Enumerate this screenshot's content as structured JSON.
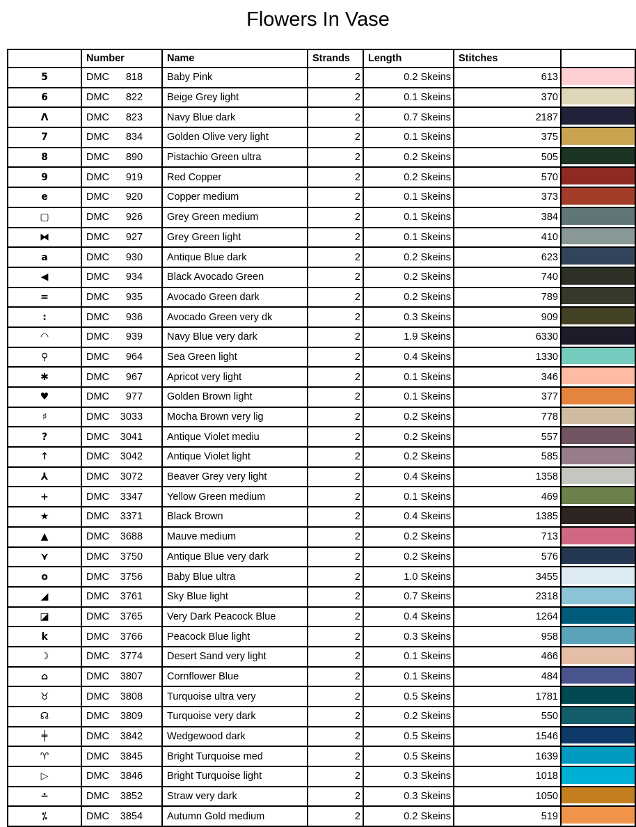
{
  "title": "Flowers In Vase",
  "headers": {
    "symbol": "",
    "number": "Number",
    "name": "Name",
    "strands": "Strands",
    "length": "Length",
    "stitches": "Stitches",
    "color": ""
  },
  "rows": [
    {
      "symbol": "5",
      "brand": "DMC",
      "number": "818",
      "name": "Baby Pink",
      "strands": "2",
      "length": "0.2 Skeins",
      "stitches": "613",
      "color": "#FFD0D3"
    },
    {
      "symbol": "6",
      "brand": "DMC",
      "number": "822",
      "name": "Beige Grey light",
      "strands": "2",
      "length": "0.1 Skeins",
      "stitches": "370",
      "color": "#E0D6BA"
    },
    {
      "symbol": "Λ",
      "brand": "DMC",
      "number": "823",
      "name": "Navy Blue dark",
      "strands": "2",
      "length": "0.7 Skeins",
      "stitches": "2187",
      "color": "#21223A"
    },
    {
      "symbol": "7",
      "brand": "DMC",
      "number": "834",
      "name": "Golden Olive very light",
      "strands": "2",
      "length": "0.1 Skeins",
      "stitches": "375",
      "color": "#C8A350"
    },
    {
      "symbol": "8",
      "brand": "DMC",
      "number": "890",
      "name": "Pistachio Green ultra",
      "strands": "2",
      "length": "0.2 Skeins",
      "stitches": "505",
      "color": "#1C3423"
    },
    {
      "symbol": "9",
      "brand": "DMC",
      "number": "919",
      "name": "Red Copper",
      "strands": "2",
      "length": "0.2 Skeins",
      "stitches": "570",
      "color": "#8E2A22"
    },
    {
      "symbol": "e",
      "brand": "DMC",
      "number": "920",
      "name": "Copper medium",
      "strands": "2",
      "length": "0.1 Skeins",
      "stitches": "373",
      "color": "#A33C29"
    },
    {
      "symbol": "▢",
      "brand": "DMC",
      "number": "926",
      "name": "Grey Green medium",
      "strands": "2",
      "length": "0.1 Skeins",
      "stitches": "384",
      "color": "#607575"
    },
    {
      "symbol": "⧓",
      "brand": "DMC",
      "number": "927",
      "name": "Grey Green light",
      "strands": "2",
      "length": "0.1 Skeins",
      "stitches": "410",
      "color": "#889896"
    },
    {
      "symbol": "a",
      "brand": "DMC",
      "number": "930",
      "name": "Antique Blue dark",
      "strands": "2",
      "length": "0.2 Skeins",
      "stitches": "623",
      "color": "#31445A"
    },
    {
      "symbol": "◀",
      "brand": "DMC",
      "number": "934",
      "name": "Black Avocado Green",
      "strands": "2",
      "length": "0.2 Skeins",
      "stitches": "740",
      "color": "#2D3125"
    },
    {
      "symbol": "=",
      "brand": "DMC",
      "number": "935",
      "name": "Avocado Green dark",
      "strands": "2",
      "length": "0.2 Skeins",
      "stitches": "789",
      "color": "#353A2B"
    },
    {
      "symbol": ":",
      "brand": "DMC",
      "number": "936",
      "name": "Avocado Green very dk",
      "strands": "2",
      "length": "0.3 Skeins",
      "stitches": "909",
      "color": "#434224"
    },
    {
      "symbol": "◠",
      "brand": "DMC",
      "number": "939",
      "name": "Navy Blue very dark",
      "strands": "2",
      "length": "1.9 Skeins",
      "stitches": "6330",
      "color": "#1C1B2A"
    },
    {
      "symbol": "⚲",
      "brand": "DMC",
      "number": "964",
      "name": "Sea Green light",
      "strands": "2",
      "length": "0.4 Skeins",
      "stitches": "1330",
      "color": "#75CBBE"
    },
    {
      "symbol": "✱",
      "brand": "DMC",
      "number": "967",
      "name": "Apricot very light",
      "strands": "2",
      "length": "0.1 Skeins",
      "stitches": "346",
      "color": "#FFBBA4"
    },
    {
      "symbol": "♥",
      "brand": "DMC",
      "number": "977",
      "name": "Golden Brown light",
      "strands": "2",
      "length": "0.1 Skeins",
      "stitches": "377",
      "color": "#E5843D"
    },
    {
      "symbol": "♯",
      "brand": "DMC",
      "number": "3033",
      "name": "Mocha Brown very lig",
      "strands": "2",
      "length": "0.2 Skeins",
      "stitches": "778",
      "color": "#D0BBA3"
    },
    {
      "symbol": "?",
      "brand": "DMC",
      "number": "3041",
      "name": "Antique Violet mediu",
      "strands": "2",
      "length": "0.2 Skeins",
      "stitches": "557",
      "color": "#705462"
    },
    {
      "symbol": "↑",
      "brand": "DMC",
      "number": "3042",
      "name": "Antique Violet light",
      "strands": "2",
      "length": "0.2 Skeins",
      "stitches": "585",
      "color": "#977C8C"
    },
    {
      "symbol": "⅄",
      "brand": "DMC",
      "number": "3072",
      "name": "Beaver Grey very light",
      "strands": "2",
      "length": "0.4 Skeins",
      "stitches": "1358",
      "color": "#C4C6C0"
    },
    {
      "symbol": "+",
      "brand": "DMC",
      "number": "3347",
      "name": "Yellow Green medium",
      "strands": "2",
      "length": "0.1 Skeins",
      "stitches": "469",
      "color": "#6B804A"
    },
    {
      "symbol": "★",
      "brand": "DMC",
      "number": "3371",
      "name": "Black Brown",
      "strands": "2",
      "length": "0.4 Skeins",
      "stitches": "1385",
      "color": "#2E2421"
    },
    {
      "symbol": "▲",
      "brand": "DMC",
      "number": "3688",
      "name": "Mauve medium",
      "strands": "2",
      "length": "0.2 Skeins",
      "stitches": "713",
      "color": "#D06884"
    },
    {
      "symbol": "⋎",
      "brand": "DMC",
      "number": "3750",
      "name": "Antique Blue very dark",
      "strands": "2",
      "length": "0.2 Skeins",
      "stitches": "576",
      "color": "#243750"
    },
    {
      "symbol": "o",
      "brand": "DMC",
      "number": "3756",
      "name": "Baby Blue ultra",
      "strands": "2",
      "length": "1.0 Skeins",
      "stitches": "3455",
      "color": "#DDEBF2"
    },
    {
      "symbol": "◢",
      "brand": "DMC",
      "number": "3761",
      "name": "Sky Blue light",
      "strands": "2",
      "length": "0.7 Skeins",
      "stitches": "2318",
      "color": "#8CC3D7"
    },
    {
      "symbol": "◪",
      "brand": "DMC",
      "number": "3765",
      "name": "Very Dark Peacock Blue",
      "strands": "2",
      "length": "0.4 Skeins",
      "stitches": "1264",
      "color": "#005A7A"
    },
    {
      "symbol": "k",
      "brand": "DMC",
      "number": "3766",
      "name": "Peacock Blue light",
      "strands": "2",
      "length": "0.3 Skeins",
      "stitches": "958",
      "color": "#5AA3BA"
    },
    {
      "symbol": "☽",
      "brand": "DMC",
      "number": "3774",
      "name": "Desert Sand very light",
      "strands": "2",
      "length": "0.1 Skeins",
      "stitches": "466",
      "color": "#E6BDA7"
    },
    {
      "symbol": "⌂",
      "brand": "DMC",
      "number": "3807",
      "name": "Cornflower Blue",
      "strands": "2",
      "length": "0.1 Skeins",
      "stitches": "484",
      "color": "#4A558E"
    },
    {
      "symbol": "♉",
      "brand": "DMC",
      "number": "3808",
      "name": "Turquoise ultra very",
      "strands": "2",
      "length": "0.5 Skeins",
      "stitches": "1781",
      "color": "#004952"
    },
    {
      "symbol": "☊",
      "brand": "DMC",
      "number": "3809",
      "name": "Turquoise very dark",
      "strands": "2",
      "length": "0.2 Skeins",
      "stitches": "550",
      "color": "#145E6C"
    },
    {
      "symbol": "╪",
      "brand": "DMC",
      "number": "3842",
      "name": "Wedgewood dark",
      "strands": "2",
      "length": "0.5 Skeins",
      "stitches": "1546",
      "color": "#0D3A68"
    },
    {
      "symbol": "♈",
      "brand": "DMC",
      "number": "3845",
      "name": "Bright Turquoise med",
      "strands": "2",
      "length": "0.5 Skeins",
      "stitches": "1639",
      "color": "#009AC0"
    },
    {
      "symbol": "▷",
      "brand": "DMC",
      "number": "3846",
      "name": "Bright Turquoise light",
      "strands": "2",
      "length": "0.3 Skeins",
      "stitches": "1018",
      "color": "#00B0D4"
    },
    {
      "symbol": "∸",
      "brand": "DMC",
      "number": "3852",
      "name": "Straw very dark",
      "strands": "2",
      "length": "0.3 Skeins",
      "stitches": "1050",
      "color": "#C37F1E"
    },
    {
      "symbol": "⁒",
      "brand": "DMC",
      "number": "3854",
      "name": "Autumn Gold medium",
      "strands": "2",
      "length": "0.2 Skeins",
      "stitches": "519",
      "color": "#F1944A"
    }
  ]
}
